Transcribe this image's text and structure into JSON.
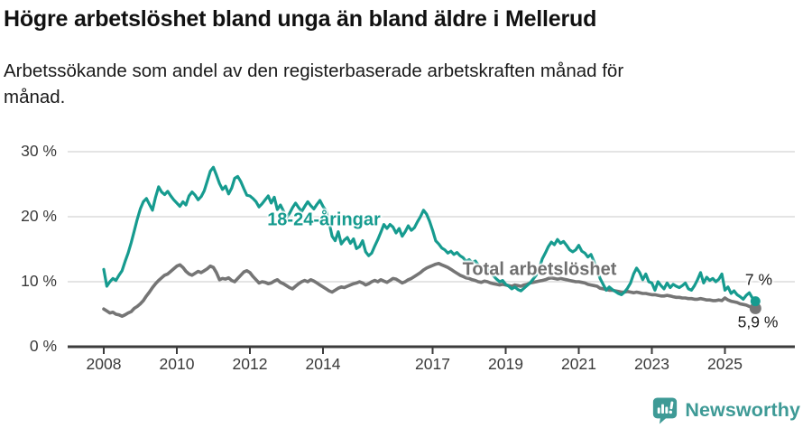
{
  "header": {
    "title": "Högre arbetslöshet bland unga än bland äldre i Mellerud",
    "subtitle_line1": "Arbetssökande som andel av den registerbaserade arbetskraften månad för",
    "subtitle_line2": "månad."
  },
  "chart_data": {
    "type": "line",
    "title": "Högre arbetslöshet bland unga än bland äldre i Mellerud",
    "subtitle": "Arbetssökande som andel av den registerbaserade arbetskraften månad för månad.",
    "unit": "percent",
    "x_unit": "month",
    "x_range": [
      "2008-01",
      "2025-11"
    ],
    "ylim": [
      0,
      33
    ],
    "grid": "horizontal",
    "legend_position": "inline-labels",
    "x_axis": {
      "ticks": [
        {
          "value": 2008,
          "label": "2008"
        },
        {
          "value": 2010,
          "label": "2010"
        },
        {
          "value": 2012,
          "label": "2012"
        },
        {
          "value": 2014,
          "label": "2014"
        },
        {
          "value": 2017,
          "label": "2017"
        },
        {
          "value": 2019,
          "label": "2019"
        },
        {
          "value": 2021,
          "label": "2021"
        },
        {
          "value": 2023,
          "label": "2023"
        },
        {
          "value": 2025,
          "label": "2025"
        }
      ]
    },
    "y_axis": {
      "ticks": [
        {
          "value": 30,
          "label": "30 %"
        },
        {
          "value": 20,
          "label": "20 %"
        },
        {
          "value": 10,
          "label": "10 %"
        },
        {
          "value": 0,
          "label": "0 %"
        }
      ]
    },
    "series": [
      {
        "name": "Total arbetslöshet",
        "color": "#757575",
        "end_label": "5,9 %",
        "last_value": 5.9,
        "values": [
          5.8,
          5.5,
          5.2,
          5.3,
          5.0,
          4.9,
          4.7,
          4.9,
          5.2,
          5.4,
          5.9,
          6.2,
          6.6,
          7.1,
          7.8,
          8.4,
          9.1,
          9.7,
          10.2,
          10.6,
          11.0,
          11.2,
          11.6,
          12.0,
          12.4,
          12.6,
          12.2,
          11.6,
          11.2,
          11.0,
          11.3,
          11.6,
          11.4,
          11.7,
          12.0,
          12.4,
          12.2,
          11.4,
          10.3,
          10.5,
          10.4,
          10.6,
          10.2,
          10.0,
          10.5,
          11.0,
          11.5,
          11.7,
          11.4,
          10.8,
          10.3,
          9.8,
          10.0,
          9.9,
          9.7,
          9.8,
          10.1,
          10.3,
          9.9,
          9.7,
          9.4,
          9.1,
          8.9,
          9.3,
          9.7,
          10.0,
          10.2,
          10.0,
          10.3,
          10.1,
          9.8,
          9.5,
          9.2,
          8.9,
          8.6,
          8.4,
          8.7,
          9.0,
          9.2,
          9.1,
          9.3,
          9.5,
          9.7,
          9.8,
          10.0,
          9.8,
          9.5,
          9.7,
          10.0,
          10.2,
          10.0,
          10.3,
          10.1,
          9.9,
          10.2,
          10.5,
          10.4,
          10.1,
          9.8,
          10.0,
          10.3,
          10.5,
          10.8,
          11.1,
          11.4,
          11.8,
          12.1,
          12.3,
          12.5,
          12.7,
          12.8,
          12.6,
          12.4,
          12.2,
          11.9,
          11.6,
          11.3,
          11.0,
          10.8,
          10.6,
          10.5,
          10.3,
          10.2,
          10.0,
          9.9,
          10.1,
          10.0,
          9.8,
          9.7,
          9.6,
          9.5,
          9.6,
          9.5,
          9.4,
          9.3,
          9.5,
          9.4,
          9.3,
          9.5,
          9.6,
          9.8,
          9.9,
          10.0,
          10.1,
          10.2,
          10.3,
          10.5,
          10.6,
          10.5,
          10.4,
          10.5,
          10.4,
          10.3,
          10.2,
          10.1,
          10.0,
          10.0,
          9.9,
          9.8,
          9.6,
          9.5,
          9.4,
          9.3,
          9.0,
          8.9,
          8.8,
          8.7,
          8.7,
          8.6,
          8.5,
          8.4,
          8.4,
          8.5,
          8.4,
          8.3,
          8.4,
          8.3,
          8.2,
          8.2,
          8.1,
          8.0,
          8.0,
          7.9,
          7.8,
          7.8,
          7.9,
          7.8,
          7.7,
          7.6,
          7.6,
          7.5,
          7.5,
          7.4,
          7.4,
          7.3,
          7.3,
          7.4,
          7.3,
          7.2,
          7.2,
          7.1,
          7.1,
          7.2,
          7.1,
          7.5,
          7.2,
          7.0,
          6.9,
          6.8,
          6.6,
          6.5,
          6.4,
          6.2,
          6.1,
          5.9
        ]
      },
      {
        "name": "18-24-åringar",
        "color": "#169b8f",
        "end_label": "7 %",
        "last_value": 7.0,
        "values": [
          11.9,
          9.3,
          10.0,
          10.5,
          10.2,
          11.0,
          11.7,
          13.1,
          14.4,
          16.0,
          17.8,
          19.6,
          21.2,
          22.3,
          22.8,
          21.9,
          21.0,
          23.0,
          24.6,
          23.8,
          23.4,
          23.9,
          23.2,
          22.6,
          22.1,
          21.6,
          22.3,
          21.8,
          23.2,
          23.8,
          23.3,
          22.6,
          23.1,
          24.0,
          25.5,
          27.0,
          27.6,
          26.4,
          25.1,
          24.2,
          24.7,
          23.5,
          24.4,
          25.9,
          26.2,
          25.4,
          24.3,
          23.3,
          23.2,
          22.8,
          22.3,
          21.5,
          22.0,
          22.6,
          23.2,
          22.1,
          23.0,
          21.1,
          21.8,
          20.9,
          19.8,
          20.5,
          21.4,
          22.1,
          21.4,
          20.8,
          21.6,
          22.3,
          21.7,
          21.2,
          21.9,
          22.5,
          21.6,
          20.9,
          19.1,
          17.0,
          16.3,
          17.7,
          15.8,
          16.4,
          16.8,
          15.9,
          16.6,
          15.1,
          15.4,
          16.3,
          14.6,
          14.0,
          14.4,
          15.5,
          16.5,
          17.6,
          18.8,
          18.2,
          18.8,
          18.4,
          17.5,
          18.2,
          17.0,
          17.7,
          18.6,
          17.9,
          18.3,
          19.2,
          20.0,
          21.0,
          20.4,
          19.3,
          17.9,
          16.3,
          15.8,
          15.2,
          14.9,
          14.4,
          14.7,
          14.2,
          14.5,
          14.0,
          13.7,
          13.1,
          13.4,
          12.9,
          13.2,
          12.6,
          12.2,
          12.5,
          11.9,
          11.4,
          10.9,
          10.4,
          10.0,
          10.2,
          9.6,
          9.3,
          8.9,
          9.2,
          8.8,
          8.6,
          9.0,
          9.4,
          9.8,
          10.4,
          11.0,
          12.0,
          13.5,
          14.4,
          15.4,
          16.1,
          15.7,
          16.5,
          15.9,
          16.2,
          15.6,
          14.9,
          14.6,
          14.9,
          15.6,
          14.7,
          14.4,
          13.8,
          14.2,
          13.1,
          11.9,
          10.5,
          9.6,
          8.7,
          9.2,
          8.8,
          8.5,
          8.2,
          8.0,
          8.4,
          9.0,
          9.8,
          11.2,
          12.1,
          11.4,
          10.3,
          11.2,
          10.0,
          9.8,
          8.7,
          10.0,
          9.4,
          8.9,
          9.8,
          9.1,
          9.6,
          9.3,
          9.1,
          9.4,
          9.8,
          8.9,
          8.7,
          9.4,
          10.3,
          11.4,
          9.8,
          10.7,
          10.2,
          10.5,
          10.0,
          10.4,
          11.2,
          8.7,
          9.2,
          8.2,
          8.6,
          8.0,
          7.7,
          7.3,
          7.9,
          8.3,
          7.5,
          7.0
        ]
      }
    ],
    "colors": {
      "grid": "#dcdcdc",
      "axis": "#3c3c3c",
      "youth_line": "#169b8f",
      "total_line": "#757575"
    }
  },
  "footer": {
    "brand": "Newsworthy",
    "brand_color": "#3e9a96"
  }
}
